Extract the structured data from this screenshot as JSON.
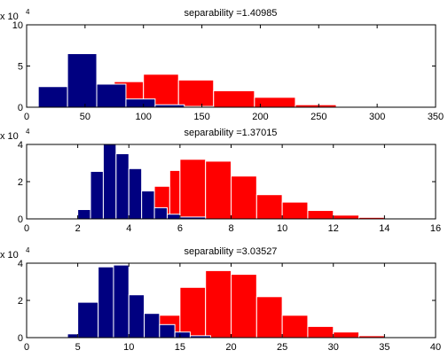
{
  "chart_data": [
    {
      "type": "bar",
      "title": "separability =1.40985",
      "y_multiplier": {
        "base": "x 10",
        "exponent": "4"
      },
      "xlim": [
        0,
        350
      ],
      "ylim": [
        0,
        10
      ],
      "xticks": [
        0,
        50,
        100,
        150,
        200,
        250,
        300,
        350
      ],
      "yticks": [
        0,
        5,
        10
      ],
      "series": [
        {
          "color": "#ff0000",
          "bins": [
            [
              75,
              100,
              3.1
            ],
            [
              100,
              130,
              4.0
            ],
            [
              130,
              160,
              3.3
            ],
            [
              160,
              195,
              2.0
            ],
            [
              195,
              230,
              1.2
            ],
            [
              230,
              265,
              0.3
            ]
          ]
        },
        {
          "color": "#000080",
          "bins": [
            [
              10,
              35,
              2.5
            ],
            [
              35,
              60,
              6.5
            ],
            [
              60,
              85,
              2.8
            ],
            [
              85,
              110,
              1.0
            ],
            [
              110,
              135,
              0.3
            ],
            [
              135,
              160,
              0.1
            ]
          ]
        }
      ]
    },
    {
      "type": "bar",
      "title": "separability =1.37015",
      "y_multiplier": {
        "base": "x 10",
        "exponent": "4"
      },
      "xlim": [
        0,
        16
      ],
      "ylim": [
        0,
        4
      ],
      "xticks": [
        0,
        2,
        4,
        6,
        8,
        10,
        12,
        14,
        16
      ],
      "yticks": [
        0,
        2,
        4
      ],
      "series": [
        {
          "color": "#ff0000",
          "bins": [
            [
              5.0,
              5.6,
              1.75
            ],
            [
              5.6,
              6.0,
              2.6
            ],
            [
              6.0,
              7.0,
              3.2
            ],
            [
              7.0,
              8.0,
              3.1
            ],
            [
              8.0,
              9.0,
              2.3
            ],
            [
              9.0,
              10.0,
              1.3
            ],
            [
              10.0,
              11.0,
              0.9
            ],
            [
              11.0,
              12.0,
              0.45
            ],
            [
              12.0,
              13.0,
              0.2
            ],
            [
              13.0,
              14.0,
              0.08
            ],
            [
              14.0,
              15.5,
              0.03
            ]
          ]
        },
        {
          "color": "#000080",
          "bins": [
            [
              2.0,
              2.5,
              0.5
            ],
            [
              2.5,
              3.0,
              2.55
            ],
            [
              3.0,
              3.5,
              4.0
            ],
            [
              3.5,
              4.0,
              3.5
            ],
            [
              4.0,
              4.5,
              2.7
            ],
            [
              4.5,
              5.0,
              1.5
            ],
            [
              5.0,
              5.5,
              0.6
            ],
            [
              5.5,
              6.0,
              0.25
            ],
            [
              6.0,
              7.0,
              0.1
            ]
          ]
        }
      ]
    },
    {
      "type": "bar",
      "title": "separability =3.03527",
      "y_multiplier": {
        "base": "x 10",
        "exponent": "4"
      },
      "xlim": [
        0,
        40
      ],
      "ylim": [
        0,
        4
      ],
      "xticks": [
        0,
        5,
        10,
        15,
        20,
        25,
        30,
        35,
        40
      ],
      "yticks": [
        0,
        2,
        4
      ],
      "series": [
        {
          "color": "#ff0000",
          "bins": [
            [
              12.5,
              15,
              1.2
            ],
            [
              15,
              17.5,
              2.7
            ],
            [
              17.5,
              20,
              3.6
            ],
            [
              20,
              22.5,
              3.4
            ],
            [
              22.5,
              25,
              2.2
            ],
            [
              25,
              27.5,
              1.2
            ],
            [
              27.5,
              30,
              0.6
            ],
            [
              30,
              32.5,
              0.3
            ],
            [
              32.5,
              35,
              0.1
            ]
          ]
        },
        {
          "color": "#000080",
          "bins": [
            [
              4,
              5,
              0.2
            ],
            [
              5,
              7,
              1.9
            ],
            [
              7,
              8.5,
              3.8
            ],
            [
              8.5,
              10,
              3.9
            ],
            [
              10,
              11.5,
              2.3
            ],
            [
              11.5,
              13,
              1.3
            ],
            [
              13,
              14.5,
              0.7
            ],
            [
              14.5,
              16,
              0.3
            ],
            [
              16,
              18,
              0.1
            ]
          ]
        }
      ]
    }
  ]
}
